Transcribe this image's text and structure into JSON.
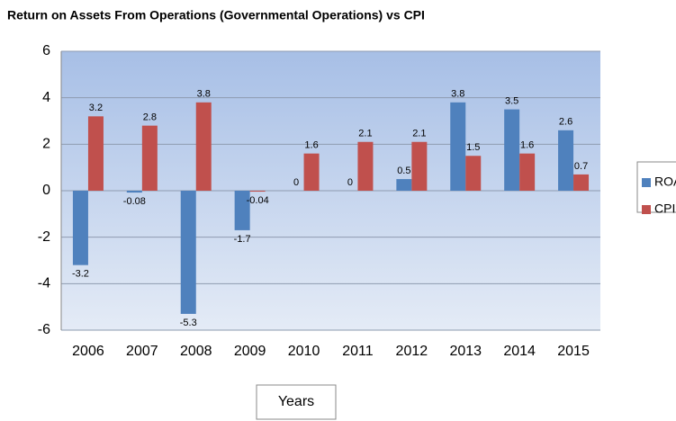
{
  "chart_data": {
    "type": "bar",
    "title": "Return on Assets From Operations (Governmental Operations) vs CPI",
    "x_label": "Years",
    "categories": [
      "2006",
      "2007",
      "2008",
      "2009",
      "2010",
      "2011",
      "2012",
      "2013",
      "2014",
      "2015"
    ],
    "series": [
      {
        "name": "ROA",
        "color": "#4f81bd",
        "values": [
          -3.2,
          -0.08,
          -5.3,
          -1.7,
          0,
          0,
          0.5,
          3.8,
          3.5,
          2.6
        ]
      },
      {
        "name": "CPI",
        "color": "#c0504d",
        "values": [
          3.2,
          2.8,
          3.8,
          -0.04,
          1.6,
          2.1,
          2.1,
          1.5,
          1.6,
          0.7
        ]
      }
    ],
    "ylim": [
      -6,
      6
    ],
    "yticks": [
      -6,
      -4,
      -2,
      0,
      2,
      4,
      6
    ],
    "grid": true,
    "legend": "right"
  }
}
